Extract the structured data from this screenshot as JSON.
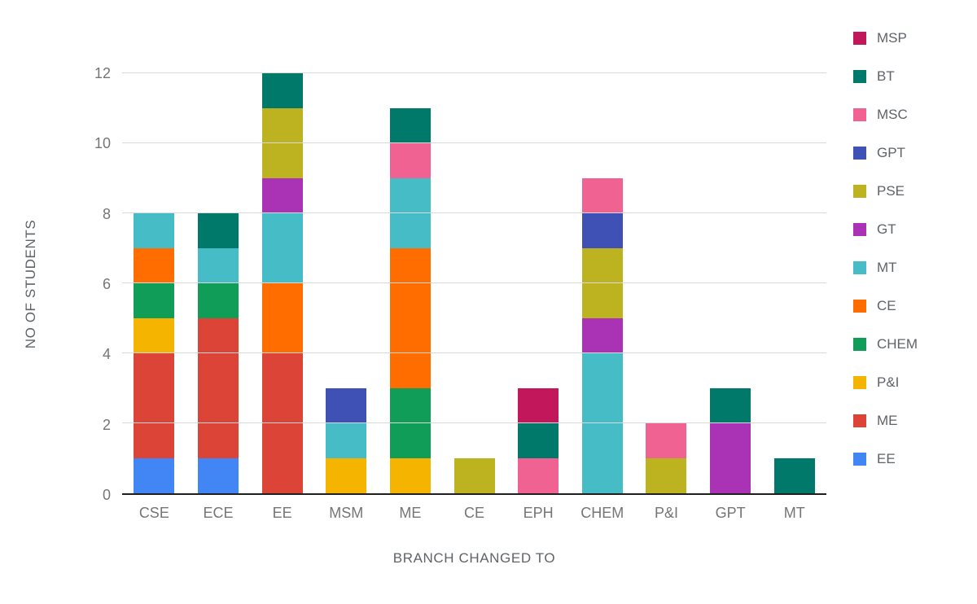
{
  "chart_data": {
    "type": "bar",
    "stacked": true,
    "title": "",
    "xlabel": "BRANCH CHANGED TO",
    "ylabel": "NO OF STUDENTS",
    "ylim": [
      0,
      12
    ],
    "yticks": [
      0,
      2,
      4,
      6,
      8,
      10,
      12
    ],
    "grid": true,
    "legend_position": "right",
    "legend_order_top_to_bottom": [
      "MSP",
      "BT",
      "MSC",
      "GPT",
      "PSE",
      "GT",
      "MT",
      "CE",
      "CHEM",
      "P&I",
      "ME",
      "EE"
    ],
    "categories": [
      "CSE",
      "ECE",
      "EE",
      "MSM",
      "ME",
      "CE",
      "EPH",
      "CHEM",
      "P&I",
      "GPT",
      "MT"
    ],
    "series": [
      {
        "name": "EE",
        "color": "#4285F4",
        "values": [
          1,
          1,
          0,
          0,
          0,
          0,
          0,
          0,
          0,
          0,
          0
        ]
      },
      {
        "name": "ME",
        "color": "#DB4437",
        "values": [
          3,
          4,
          4,
          0,
          0,
          0,
          0,
          0,
          0,
          0,
          0
        ]
      },
      {
        "name": "P&I",
        "color": "#F4B400",
        "values": [
          1,
          0,
          0,
          1,
          1,
          0,
          0,
          0,
          0,
          0,
          0
        ]
      },
      {
        "name": "CHEM",
        "color": "#0F9D58",
        "values": [
          1,
          1,
          0,
          0,
          2,
          0,
          0,
          0,
          0,
          0,
          0
        ]
      },
      {
        "name": "CE",
        "color": "#FF6D00",
        "values": [
          1,
          0,
          2,
          0,
          4,
          0,
          0,
          0,
          0,
          0,
          0
        ]
      },
      {
        "name": "MT",
        "color": "#46BDC6",
        "values": [
          1,
          1,
          2,
          1,
          2,
          0,
          0,
          4,
          0,
          0,
          0
        ]
      },
      {
        "name": "GT",
        "color": "#A932B5",
        "values": [
          0,
          0,
          1,
          0,
          0,
          0,
          0,
          1,
          0,
          2,
          0
        ]
      },
      {
        "name": "PSE",
        "color": "#BDB220",
        "values": [
          0,
          0,
          2,
          0,
          0,
          1,
          0,
          2,
          1,
          0,
          0
        ]
      },
      {
        "name": "GPT",
        "color": "#3F51B5",
        "values": [
          0,
          0,
          0,
          1,
          0,
          0,
          0,
          1,
          0,
          0,
          0
        ]
      },
      {
        "name": "MSC",
        "color": "#F06292",
        "values": [
          0,
          0,
          0,
          0,
          1,
          0,
          1,
          1,
          1,
          0,
          0
        ]
      },
      {
        "name": "BT",
        "color": "#00796B",
        "values": [
          0,
          1,
          1,
          0,
          1,
          0,
          1,
          0,
          0,
          1,
          1
        ]
      },
      {
        "name": "MSP",
        "color": "#C2185B",
        "values": [
          0,
          0,
          0,
          0,
          0,
          0,
          1,
          0,
          0,
          0,
          0
        ]
      }
    ],
    "bar_totals": {
      "CSE": 8,
      "ECE": 8,
      "EE": 12,
      "MSM": 3,
      "ME": 11,
      "CE": 1,
      "EPH": 3,
      "CHEM": 9,
      "P&I": 2,
      "GPT": 3,
      "MT": 1
    }
  }
}
